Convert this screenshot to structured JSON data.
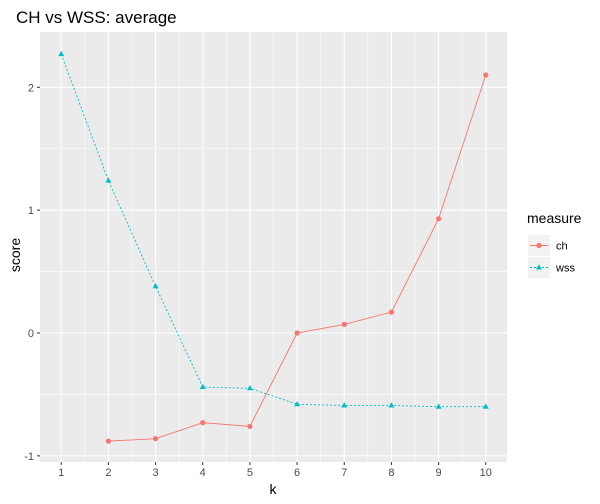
{
  "chart_data": {
    "type": "line",
    "title": "CH vs WSS: average",
    "xlabel": "k",
    "ylabel": "score",
    "x": [
      1,
      2,
      3,
      4,
      5,
      6,
      7,
      8,
      9,
      10
    ],
    "xlim": [
      0.55,
      10.45
    ],
    "ylim": [
      -1.05,
      2.45
    ],
    "y_ticks": [
      -1,
      0,
      1,
      2
    ],
    "grid": true,
    "legend_title": "measure",
    "legend_position": "right",
    "series": [
      {
        "name": "ch",
        "color": "#F8766D",
        "marker": "circle",
        "linestyle": "solid",
        "x": [
          2,
          3,
          4,
          5,
          6,
          7,
          8,
          9,
          10
        ],
        "values": [
          -0.88,
          -0.86,
          -0.73,
          -0.76,
          0.0,
          0.07,
          0.17,
          0.93,
          2.1
        ]
      },
      {
        "name": "wss",
        "color": "#00BFC4",
        "marker": "triangle",
        "linestyle": "dotted",
        "x": [
          1,
          2,
          3,
          4,
          5,
          6,
          7,
          8,
          9,
          10
        ],
        "values": [
          2.27,
          1.24,
          0.38,
          -0.44,
          -0.45,
          -0.58,
          -0.59,
          -0.59,
          -0.6,
          -0.6
        ]
      }
    ]
  }
}
